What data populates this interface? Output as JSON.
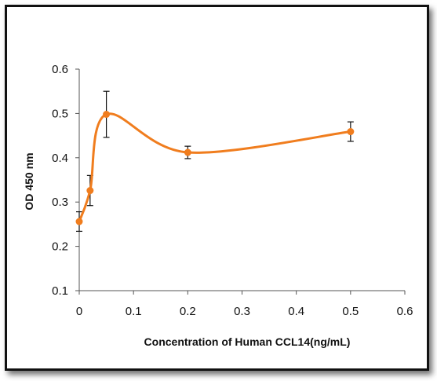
{
  "chart_data": {
    "type": "line",
    "title": "",
    "xlabel": "Concentration of Human CCL14(ng/mL)",
    "ylabel": "OD 450 nm",
    "xlim": [
      0,
      0.6
    ],
    "ylim": [
      0.1,
      0.6
    ],
    "x_ticks": [
      "0",
      "0.1",
      "0.2",
      "0.3",
      "0.4",
      "0.5",
      "0.6"
    ],
    "y_ticks": [
      "0.1",
      "0.2",
      "0.3",
      "0.4",
      "0.5",
      "0.6"
    ],
    "grid": false,
    "legend": "none",
    "smooth": true,
    "series_color": "#f07d1e",
    "series": [
      {
        "x": [
          0,
          0.02,
          0.05,
          0.2,
          0.5
        ],
        "y": [
          0.256,
          0.326,
          0.498,
          0.412,
          0.459
        ],
        "error": [
          0.022,
          0.034,
          0.052,
          0.014,
          0.022
        ]
      }
    ]
  }
}
